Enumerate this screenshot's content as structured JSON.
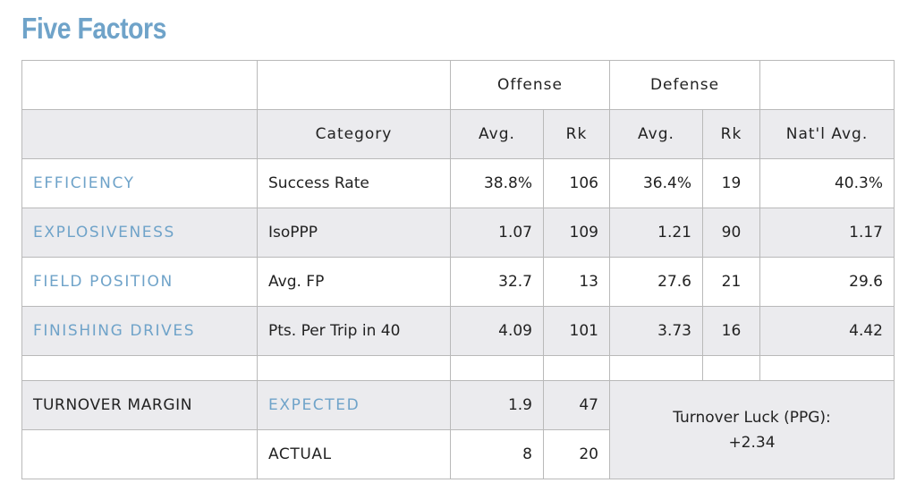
{
  "title": "Five Factors",
  "header": {
    "offense": "Offense",
    "defense": "Defense",
    "category": "Category",
    "avg": "Avg.",
    "rk": "Rk",
    "natl_avg": "Nat'l Avg."
  },
  "rows": [
    {
      "factor": "EFFICIENCY",
      "category": "Success Rate",
      "off_avg": "38.8%",
      "off_rk": "106",
      "def_avg": "36.4%",
      "def_rk": "19",
      "natl_avg": "40.3%"
    },
    {
      "factor": "EXPLOSIVENESS",
      "category": "IsoPPP",
      "off_avg": "1.07",
      "off_rk": "109",
      "def_avg": "1.21",
      "def_rk": "90",
      "natl_avg": "1.17"
    },
    {
      "factor": "FIELD POSITION",
      "category": "Avg. FP",
      "off_avg": "32.7",
      "off_rk": "13",
      "def_avg": "27.6",
      "def_rk": "21",
      "natl_avg": "29.6"
    },
    {
      "factor": "FINISHING DRIVES",
      "category": "Pts. Per Trip in 40",
      "off_avg": "4.09",
      "off_rk": "101",
      "def_avg": "3.73",
      "def_rk": "16",
      "natl_avg": "4.42"
    }
  ],
  "turnover": {
    "label": "TURNOVER MARGIN",
    "expected_label": "EXPECTED",
    "expected_avg": "1.9",
    "expected_rk": "47",
    "actual_label": "ACTUAL",
    "actual_avg": "8",
    "actual_rk": "20",
    "luck_label": "Turnover Luck (PPG):",
    "luck_value": "+2.34"
  },
  "colors": {
    "accent": "#6fa3c9",
    "row_shade": "#ebebee",
    "border": "#b9b9b9"
  }
}
